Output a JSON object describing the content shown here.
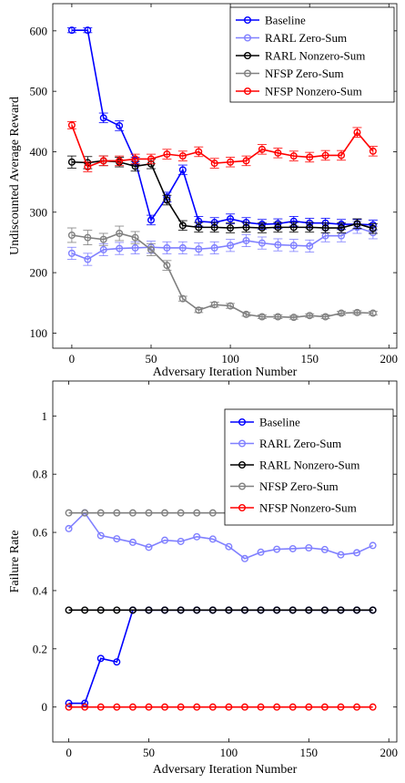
{
  "chart_data": [
    {
      "type": "line",
      "xlabel": "Adversary Iteration Number",
      "ylabel": "Undiscounted Average Reward",
      "xlim": [
        -12,
        205
      ],
      "ylim": [
        75,
        645
      ],
      "xticks": [
        0,
        50,
        100,
        150,
        200
      ],
      "yticks": [
        100,
        200,
        300,
        400,
        500,
        600
      ],
      "legend_position": "top-right",
      "x": [
        0,
        10,
        20,
        30,
        40,
        50,
        60,
        70,
        80,
        90,
        100,
        110,
        120,
        130,
        140,
        150,
        160,
        170,
        180,
        190
      ],
      "series": [
        {
          "name": "Baseline",
          "color": "#0000ff",
          "values": [
            601,
            601,
            456,
            443,
            385,
            287,
            325,
            370,
            285,
            283,
            289,
            283,
            280,
            281,
            285,
            282,
            282,
            280,
            280,
            279
          ],
          "errors": [
            4,
            4,
            8,
            8,
            6,
            8,
            8,
            8,
            8,
            8,
            8,
            8,
            8,
            8,
            8,
            8,
            8,
            8,
            8,
            8
          ]
        },
        {
          "name": "RARL Zero-Sum",
          "color": "#8080ff",
          "values": [
            232,
            222,
            238,
            240,
            241,
            242,
            241,
            241,
            239,
            241,
            245,
            253,
            249,
            246,
            245,
            244,
            261,
            261,
            275,
            266
          ],
          "errors": [
            10,
            10,
            10,
            10,
            10,
            10,
            10,
            10,
            10,
            10,
            10,
            10,
            10,
            10,
            10,
            10,
            10,
            10,
            10,
            10
          ]
        },
        {
          "name": "RARL Nonzero-Sum",
          "color": "#000000",
          "values": [
            383,
            382,
            385,
            383,
            376,
            380,
            320,
            278,
            275,
            275,
            274,
            275,
            274,
            275,
            275,
            275,
            274,
            274,
            281,
            273
          ],
          "errors": [
            10,
            10,
            8,
            8,
            8,
            8,
            8,
            8,
            8,
            8,
            8,
            8,
            8,
            8,
            8,
            8,
            8,
            8,
            8,
            8
          ]
        },
        {
          "name": "NFSP Zero-Sum",
          "color": "#808080",
          "values": [
            262,
            258,
            255,
            265,
            258,
            238,
            212,
            157,
            138,
            147,
            145,
            131,
            127,
            127,
            126,
            129,
            127,
            133,
            134,
            133
          ],
          "errors": [
            12,
            12,
            10,
            12,
            10,
            10,
            8,
            4,
            4,
            4,
            4,
            3,
            3,
            3,
            3,
            3,
            3,
            3,
            3,
            3
          ]
        },
        {
          "name": "NFSP Nonzero-Sum",
          "color": "#ff0000",
          "values": [
            444,
            375,
            385,
            385,
            388,
            388,
            396,
            393,
            400,
            381,
            383,
            385,
            404,
            398,
            393,
            391,
            394,
            394,
            432,
            401
          ],
          "errors": [
            6,
            8,
            8,
            8,
            8,
            8,
            8,
            8,
            8,
            8,
            8,
            8,
            8,
            8,
            8,
            8,
            8,
            8,
            8,
            8
          ]
        }
      ]
    },
    {
      "type": "line",
      "xlabel": "Adversary Iteration Number",
      "ylabel": "Failure Rate",
      "xlim": [
        -10,
        205
      ],
      "ylim": [
        -0.12,
        1.12
      ],
      "xticks": [
        0,
        50,
        100,
        150,
        200
      ],
      "yticks": [
        0,
        0.2,
        0.4,
        0.6,
        0.8,
        1
      ],
      "ytick_labels": [
        "0",
        "0.2",
        "0.4",
        "0.6",
        "0.8",
        "1"
      ],
      "legend_position": "top-right",
      "x": [
        0,
        10,
        20,
        30,
        40,
        50,
        60,
        70,
        80,
        90,
        100,
        110,
        120,
        130,
        140,
        150,
        160,
        170,
        180,
        190
      ],
      "series": [
        {
          "name": "Baseline",
          "color": "#0000ff",
          "values": [
            0.013,
            0.013,
            0.167,
            0.155,
            0.333,
            0.333,
            0.333,
            0.333,
            0.333,
            0.333,
            0.333,
            0.333,
            0.333,
            0.333,
            0.333,
            0.333,
            0.333,
            0.333,
            0.333,
            0.333
          ]
        },
        {
          "name": "RARL Zero-Sum",
          "color": "#8080ff",
          "values": [
            0.613,
            0.667,
            0.589,
            0.578,
            0.566,
            0.549,
            0.573,
            0.569,
            0.585,
            0.577,
            0.551,
            0.51,
            0.532,
            0.542,
            0.544,
            0.547,
            0.541,
            0.523,
            0.53,
            0.555
          ]
        },
        {
          "name": "RARL Nonzero-Sum",
          "color": "#000000",
          "values": [
            0.333,
            0.333,
            0.333,
            0.333,
            0.333,
            0.333,
            0.333,
            0.333,
            0.333,
            0.333,
            0.333,
            0.333,
            0.333,
            0.333,
            0.333,
            0.333,
            0.333,
            0.333,
            0.333,
            0.333
          ]
        },
        {
          "name": "NFSP Zero-Sum",
          "color": "#808080",
          "values": [
            0.667,
            0.667,
            0.667,
            0.667,
            0.667,
            0.667,
            0.667,
            0.667,
            0.667,
            0.667,
            0.667,
            0.667,
            0.667,
            0.667,
            0.667,
            0.667,
            0.667,
            0.667,
            0.667,
            0.667
          ]
        },
        {
          "name": "NFSP Nonzero-Sum",
          "color": "#ff0000",
          "values": [
            0,
            0,
            0,
            0,
            0,
            0,
            0,
            0,
            0,
            0,
            0,
            0,
            0,
            0,
            0,
            0,
            0,
            0,
            0,
            0
          ]
        }
      ]
    }
  ]
}
